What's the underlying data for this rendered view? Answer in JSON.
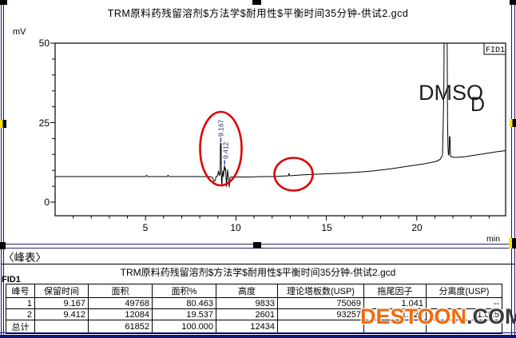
{
  "window": {
    "border_color": "#16167a",
    "watermark": {
      "brand": "DESTOON",
      "suffix": ".COM",
      "brand_color": "#f2690d",
      "suffix_color": "#3c3c3c"
    }
  },
  "chromatogram": {
    "title": "TRM原料药残留溶剂$方法学$耐用性$平衡时间35分钟-供试2.gcd",
    "detector_label": "FID1",
    "y_axis": {
      "unit": "mV",
      "tick_labels": [
        "50",
        "25",
        "0"
      ]
    },
    "x_axis": {
      "unit": "min",
      "tick_labels": [
        "5",
        "10",
        "15",
        "20"
      ]
    },
    "peak_labels": {
      "peak1": "9.167",
      "peak2": "9.412"
    },
    "annotations": {
      "solvent": "DMSO",
      "extra": "D"
    }
  },
  "peak_table": {
    "section_title": "〈峰表〉",
    "file_title": "TRM原料药残留溶剂$方法学$耐用性$平衡时间35分钟-供试2.gcd",
    "detector": "FID1",
    "headers": [
      "峰号",
      "保留时间",
      "面积",
      "面积%",
      "高度",
      "理论塔板数(USP)",
      "拖尾因子",
      "分离度(USP)"
    ],
    "rows": [
      {
        "cells": [
          "1",
          "9.167",
          "49768",
          "80.463",
          "9833",
          "75069",
          "1.041",
          "--"
        ]
      },
      {
        "cells": [
          "2",
          "9.412",
          "12084",
          "19.537",
          "2601",
          "93257",
          "1.022",
          "1.025"
        ]
      },
      {
        "cells": [
          "总计",
          "",
          "61852",
          "100.000",
          "12434",
          "",
          "",
          ""
        ]
      }
    ]
  },
  "chart_data": {
    "type": "line",
    "title": "TRM原料药残留溶剂$方法学$耐用性$平衡时间35分钟-供试2.gcd",
    "xlabel": "min",
    "ylabel": "mV",
    "xlim": [
      0,
      24.9
    ],
    "ylim": [
      -2,
      50
    ],
    "x_major_ticks": [
      5,
      10,
      15,
      20
    ],
    "y_major_ticks": [
      0,
      25,
      50
    ],
    "grid": false,
    "legend_position": "top-right (FID1 channel box)",
    "baseline_mv": 8,
    "baseline_trend": "flat ~8 mV until ~13 min, then slow rise to ~10.5 mV before DMSO peak, ~14 mV after it at right edge",
    "peaks": [
      {
        "rt_min": 9.167,
        "apex_mv": 18.6,
        "area": 49768,
        "area_pct": 80.463,
        "height_counts": 9833,
        "plates_usp": 75069,
        "tailing": 1.041,
        "label": "9.167"
      },
      {
        "rt_min": 9.412,
        "apex_mv": 11.7,
        "area": 12084,
        "area_pct": 19.537,
        "height_counts": 2601,
        "plates_usp": 93257,
        "label": "9.412"
      },
      {
        "rt_min": 12.9,
        "apex_mv": 8.5,
        "note": "trace blip circled in red"
      },
      {
        "rt_min": 21.5,
        "apex_mv": 50,
        "note": "off-scale (clipped at 50 mV)",
        "label": "DMSO"
      },
      {
        "rt_min": 21.8,
        "apex_mv": 20.5,
        "note": "small shoulder spike after DMSO"
      }
    ],
    "annotations": [
      "red ellipse around peaks at 9.167 / 9.412 min",
      "red circle around trace peak near 12.9 min"
    ]
  }
}
